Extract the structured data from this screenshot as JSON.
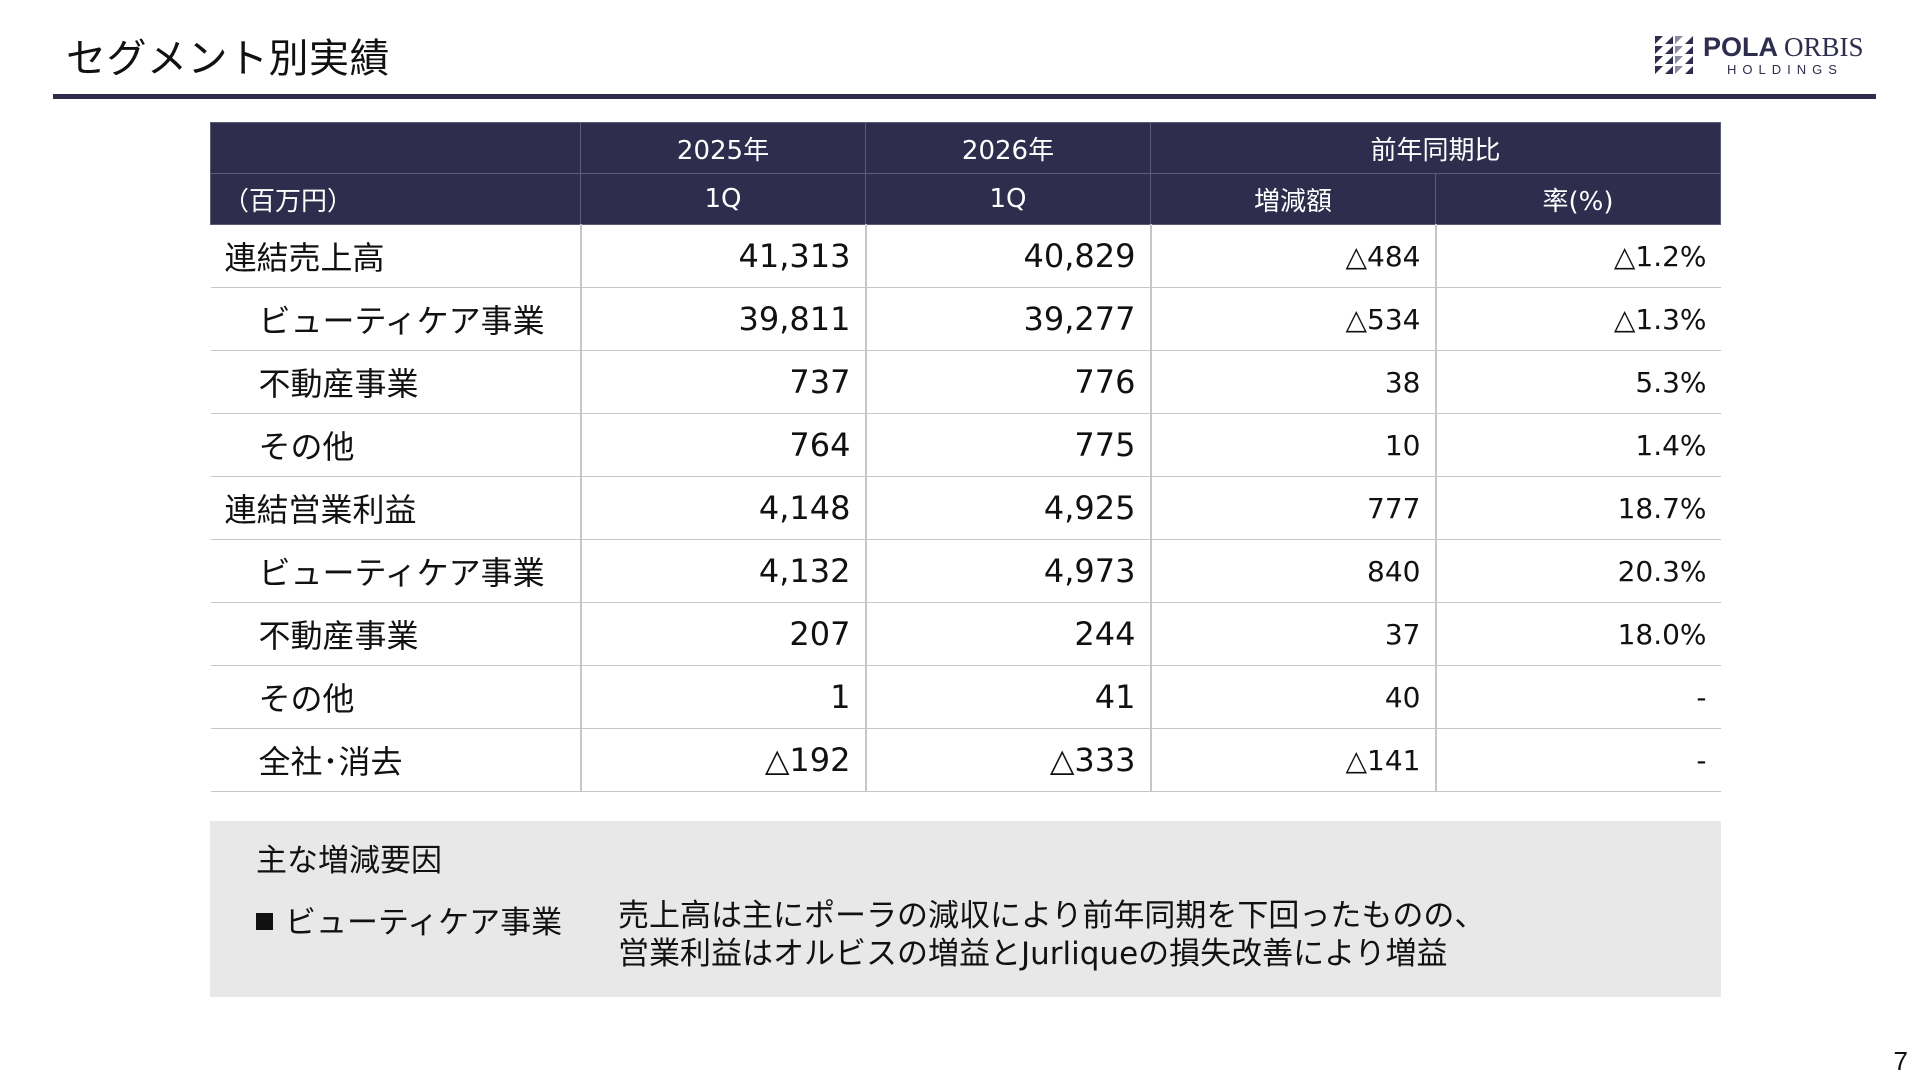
{
  "title": "セグメント別実績",
  "logo": {
    "brand_bold": "POLA",
    "brand_light": "ORBIS",
    "sub": "HOLDINGS"
  },
  "table": {
    "unit": "（百万円）",
    "header_top": [
      "2025年",
      "2026年",
      "前年同期比"
    ],
    "header_bottom": [
      "1Q",
      "1Q",
      "増減額",
      "率(%)"
    ],
    "rows": [
      {
        "label": "連結売上高",
        "v2025": "41,313",
        "v2026": "40,829",
        "diff": "△484",
        "rate": "△1.2%"
      },
      {
        "label": "ビューティケア事業",
        "v2025": "39,811",
        "v2026": "39,277",
        "diff": "△534",
        "rate": "△1.3%"
      },
      {
        "label": "不動産事業",
        "v2025": "737",
        "v2026": "776",
        "diff": "38",
        "rate": "5.3%"
      },
      {
        "label": "その他",
        "v2025": "764",
        "v2026": "775",
        "diff": "10",
        "rate": "1.4%"
      },
      {
        "label": "連結営業利益",
        "v2025": "4,148",
        "v2026": "4,925",
        "diff": "777",
        "rate": "18.7%"
      },
      {
        "label": "ビューティケア事業",
        "v2025": "4,132",
        "v2026": "4,973",
        "diff": "840",
        "rate": "20.3%"
      },
      {
        "label": "不動産事業",
        "v2025": "207",
        "v2026": "244",
        "diff": "37",
        "rate": "18.0%"
      },
      {
        "label": "その他",
        "v2025": "1",
        "v2026": "41",
        "diff": "40",
        "rate": "-"
      },
      {
        "label": "全社･消去",
        "v2025": "△192",
        "v2026": "△333",
        "diff": "△141",
        "rate": "-"
      }
    ]
  },
  "factors": {
    "heading": "主な増減要因",
    "items": [
      {
        "label": "ビューティケア事業",
        "line1": "売上高は主にポーラの減収により前年同期を下回ったものの、",
        "line2": "営業利益はオルビスの増益とJurliqueの損失改善により増益"
      }
    ]
  },
  "page_number": "7",
  "colors": {
    "header_bg": "#2e2d4e",
    "rule": "#2e2d4e",
    "panel_bg": "#e8e8e8",
    "grid": "#c6c6c6"
  }
}
